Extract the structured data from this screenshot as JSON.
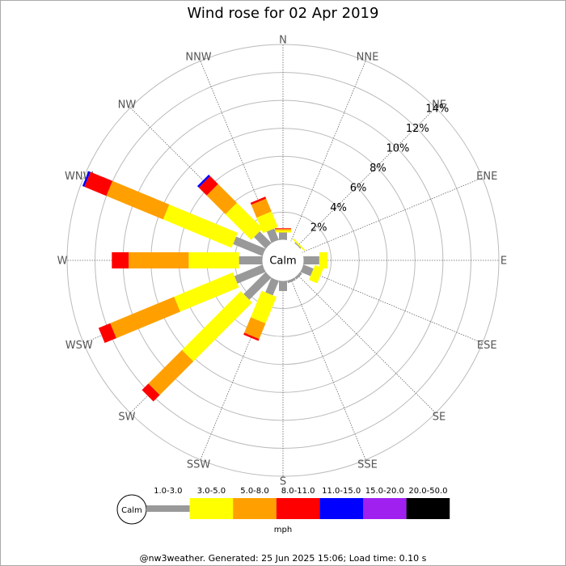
{
  "chart_data": {
    "type": "windrose",
    "title": "Wind rose for 02 Apr 2019",
    "calm_label": "Calm",
    "unit_label": "mph",
    "footer": "@nw3weather. Generated: 25 Jun 2025 15:06; Load time: 0.10 s",
    "categories": [
      "N",
      "NNE",
      "NE",
      "ENE",
      "E",
      "ESE",
      "SE",
      "SSE",
      "S",
      "SSW",
      "SW",
      "WSW",
      "W",
      "WNW",
      "NW",
      "NNW"
    ],
    "ylim": [
      0,
      14
    ],
    "yticks": [
      {
        "value": 2,
        "label": "2%"
      },
      {
        "value": 4,
        "label": "4%"
      },
      {
        "value": 6,
        "label": "6%"
      },
      {
        "value": 8,
        "label": "8%"
      },
      {
        "value": 10,
        "label": "10%"
      },
      {
        "value": 12,
        "label": "12%"
      },
      {
        "value": 14,
        "label": "14%"
      }
    ],
    "grid": true,
    "series": [
      {
        "name": "1.0-3.0",
        "color": "#999999",
        "values": [
          0.55,
          0,
          0.1,
          0,
          1.15,
          0.8,
          0.2,
          0.2,
          0.75,
          1.15,
          2.25,
          2.2,
          1.7,
          2.3,
          1.2,
          0.9
        ]
      },
      {
        "name": "3.0-5.0",
        "color": "#ffff00",
        "values": [
          0.15,
          0,
          0.1,
          0,
          0.6,
          0.65,
          0,
          0,
          0,
          2.05,
          5.95,
          4.55,
          3.6,
          5.3,
          2.6,
          1.2
        ]
      },
      {
        "name": "5.0-8.0",
        "color": "#ffa000",
        "values": [
          0.1,
          0,
          0,
          0,
          0,
          0,
          0,
          0,
          0,
          1.2,
          3.4,
          4.95,
          4.3,
          4.4,
          1.9,
          1.0
        ]
      },
      {
        "name": "8.0-11.0",
        "color": "#ff0000",
        "values": [
          0.05,
          0,
          0,
          0,
          0,
          0,
          0,
          0,
          0,
          0.15,
          0.65,
          0.9,
          1.2,
          1.7,
          0.8,
          0.15
        ]
      },
      {
        "name": "11.0-15.0",
        "color": "#0000ff",
        "values": [
          0,
          0,
          0,
          0,
          0,
          0,
          0,
          0,
          0,
          0,
          0,
          0,
          0,
          0.15,
          0.15,
          0
        ]
      },
      {
        "name": "15.0-20.0",
        "color": "#a020f0",
        "values": [
          0,
          0,
          0,
          0,
          0,
          0,
          0,
          0,
          0,
          0,
          0,
          0,
          0,
          0,
          0,
          0
        ]
      },
      {
        "name": "20.0-50.0",
        "color": "#000000",
        "values": [
          0,
          0,
          0,
          0,
          0,
          0,
          0,
          0,
          0,
          0,
          0,
          0,
          0,
          0,
          0,
          0
        ]
      }
    ]
  }
}
